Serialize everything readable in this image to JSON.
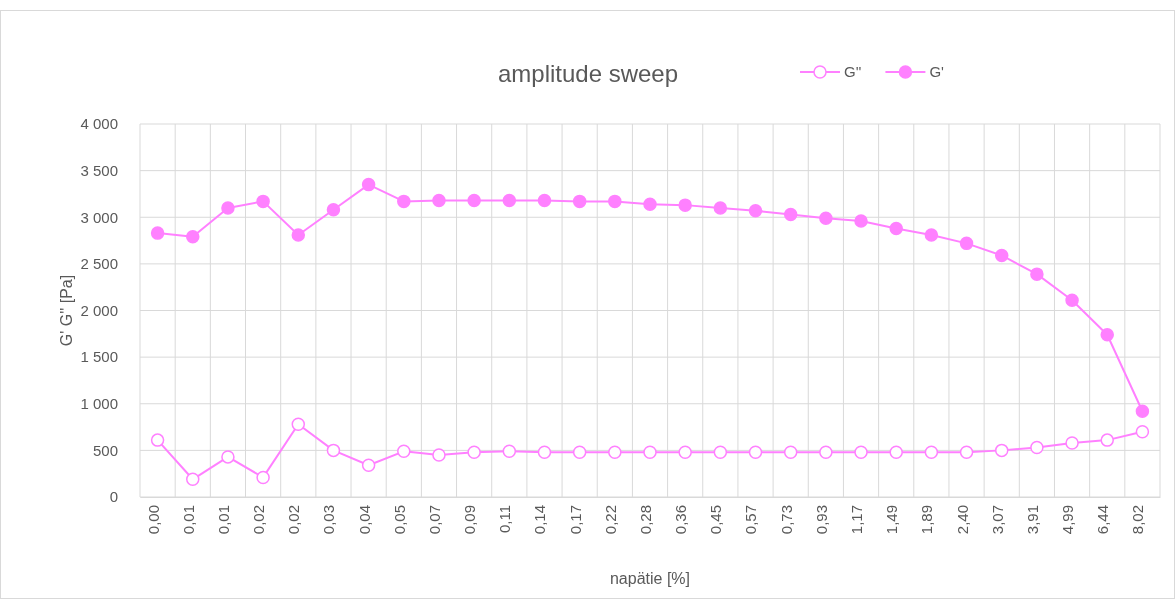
{
  "chart_data": {
    "type": "line",
    "title": "amplitude sweep",
    "xlabel": "napätie [%]",
    "ylabel": "G' G'' [Pa]",
    "categories": [
      "0,00",
      "0,01",
      "0,01",
      "0,02",
      "0,02",
      "0,03",
      "0,04",
      "0,05",
      "0,07",
      "0,09",
      "0,11",
      "0,14",
      "0,17",
      "0,22",
      "0,28",
      "0,36",
      "0,45",
      "0,57",
      "0,73",
      "0,93",
      "1,17",
      "1,49",
      "1,89",
      "2,40",
      "3,07",
      "3,91",
      "4,99",
      "6,44",
      "8,02"
    ],
    "series": [
      {
        "name": "G''",
        "color": "#ff80ff",
        "values": [
          610,
          190,
          430,
          210,
          780,
          500,
          340,
          490,
          450,
          480,
          490,
          480,
          480,
          480,
          480,
          480,
          480,
          480,
          480,
          480,
          480,
          480,
          480,
          480,
          500,
          530,
          580,
          610,
          700
        ]
      },
      {
        "name": "G'",
        "color": "#ff80ff",
        "values": [
          2830,
          2790,
          3100,
          3170,
          2810,
          3080,
          3350,
          3170,
          3180,
          3180,
          3180,
          3180,
          3170,
          3170,
          3140,
          3130,
          3100,
          3070,
          3030,
          2990,
          2960,
          2880,
          2810,
          2720,
          2590,
          2390,
          2110,
          1740,
          920
        ]
      }
    ],
    "ylim": [
      0,
      4000
    ],
    "yticks": [
      0,
      500,
      {
        "value": 1000,
        "label": "1 000"
      },
      {
        "value": 1500,
        "label": "1 500"
      },
      {
        "value": 2000,
        "label": "2 000"
      },
      {
        "value": 2500,
        "label": "2 500"
      },
      {
        "value": 3000,
        "label": "3 000"
      },
      {
        "value": 3500,
        "label": "3 500"
      },
      {
        "value": 4000,
        "label": "4 000"
      }
    ],
    "grid": true,
    "legend": "top right",
    "marker": "circle",
    "line_style": "solid"
  }
}
